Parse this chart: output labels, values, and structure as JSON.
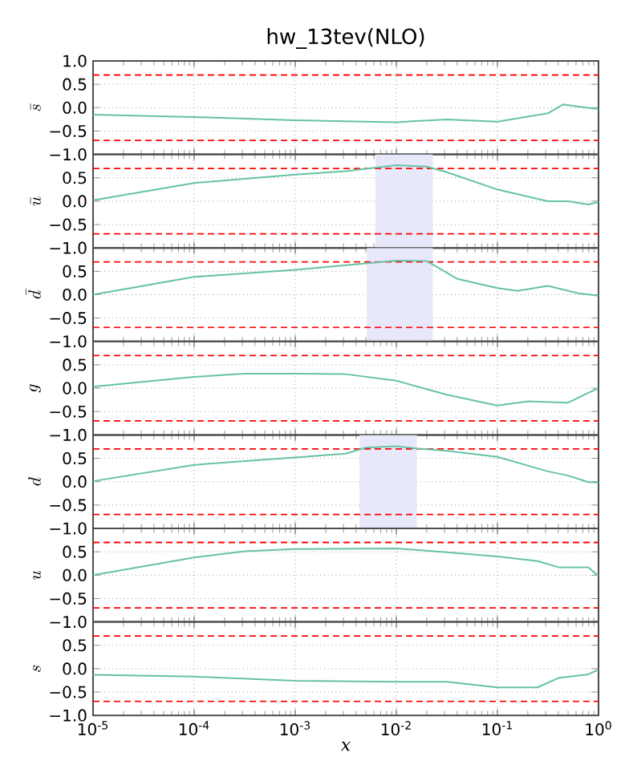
{
  "chart_data": [
    {
      "type": "line",
      "title": "hw_13tev(NLO)",
      "ylabel": "\\bar{s}",
      "log": "x",
      "grid": true,
      "tick_labels": "y",
      "xlim": [
        1e-05,
        1
      ],
      "ylim": [
        -1,
        1
      ],
      "xticks": [
        {
          "value": 1e-05,
          "label": null
        },
        {
          "value": 0.0001,
          "label": null
        },
        {
          "value": 0.001,
          "label": null
        },
        {
          "value": 0.01,
          "label": null
        },
        {
          "value": 0.1,
          "label": null
        },
        {
          "value": 1,
          "label": null
        }
      ],
      "yticks": [
        {
          "value": -1,
          "label": "−1.0"
        },
        {
          "value": -0.5,
          "label": "−0.5"
        },
        {
          "value": 0,
          "label": "0.0"
        },
        {
          "value": 0.5,
          "label": "0.5"
        },
        {
          "value": 1,
          "label": "1.0"
        }
      ],
      "ref_lines": [
        {
          "axis": "y",
          "value": 0.7,
          "color": "#ff0000",
          "line_style": "dashed"
        },
        {
          "axis": "y",
          "value": -0.7,
          "color": "#ff0000",
          "line_style": "dashed"
        }
      ],
      "series": [
        {
          "color": "#66c2a5",
          "x": [
            1e-05,
            0.0001,
            0.001,
            0.01,
            0.0316,
            0.1,
            0.316,
            0.447,
            0.708,
            1
          ],
          "values": [
            -0.15,
            -0.2,
            -0.27,
            -0.31,
            -0.25,
            -0.3,
            -0.12,
            0.07,
            0.01,
            -0.03
          ]
        }
      ]
    },
    {
      "type": "line",
      "ylabel": "\\bar{u}",
      "log": "x",
      "grid": true,
      "tick_labels": "y",
      "xlim": [
        1e-05,
        1
      ],
      "ylim": [
        -1,
        1
      ],
      "xticks": [
        {
          "value": 1e-05,
          "label": null
        },
        {
          "value": 0.0001,
          "label": null
        },
        {
          "value": 0.001,
          "label": null
        },
        {
          "value": 0.01,
          "label": null
        },
        {
          "value": 0.1,
          "label": null
        },
        {
          "value": 1,
          "label": null
        }
      ],
      "yticks": [
        {
          "value": -1,
          "label": "−1.0"
        },
        {
          "value": -0.5,
          "label": "−0.5"
        },
        {
          "value": 0,
          "label": "0.0"
        },
        {
          "value": 0.5,
          "label": "0.5"
        }
      ],
      "ref_lines": [
        {
          "axis": "y",
          "value": 0.7,
          "color": "#ff0000",
          "line_style": "dashed"
        },
        {
          "axis": "y",
          "value": -0.7,
          "color": "#ff0000",
          "line_style": "dashed"
        }
      ],
      "bands": [
        {
          "axis": "x",
          "from": 0.0062,
          "to": 0.023,
          "color": "#e8e8fb"
        }
      ],
      "series": [
        {
          "color": "#66c2a5",
          "x": [
            1e-05,
            0.0001,
            0.001,
            0.00316,
            0.01,
            0.02,
            0.0316,
            0.1,
            0.316,
            0.5,
            0.794,
            1
          ],
          "values": [
            0.02,
            0.39,
            0.57,
            0.64,
            0.77,
            0.74,
            0.62,
            0.25,
            0,
            0,
            -0.07,
            -0.02
          ]
        }
      ]
    },
    {
      "type": "line",
      "ylabel": "\\bar{d}",
      "log": "x",
      "grid": true,
      "tick_labels": "y",
      "xlim": [
        1e-05,
        1
      ],
      "ylim": [
        -1,
        1
      ],
      "xticks": [
        {
          "value": 1e-05,
          "label": null
        },
        {
          "value": 0.0001,
          "label": null
        },
        {
          "value": 0.001,
          "label": null
        },
        {
          "value": 0.01,
          "label": null
        },
        {
          "value": 0.1,
          "label": null
        },
        {
          "value": 1,
          "label": null
        }
      ],
      "yticks": [
        {
          "value": -1,
          "label": "−1.0"
        },
        {
          "value": -0.5,
          "label": "−0.5"
        },
        {
          "value": 0,
          "label": "0.0"
        },
        {
          "value": 0.5,
          "label": "0.5"
        }
      ],
      "ref_lines": [
        {
          "axis": "y",
          "value": 0.7,
          "color": "#ff0000",
          "line_style": "dashed"
        },
        {
          "axis": "y",
          "value": -0.7,
          "color": "#ff0000",
          "line_style": "dashed"
        }
      ],
      "bands": [
        {
          "axis": "x",
          "from": 0.0051,
          "to": 0.023,
          "color": "#e8e8fb"
        }
      ],
      "series": [
        {
          "color": "#66c2a5",
          "x": [
            1e-05,
            0.0001,
            0.001,
            0.01,
            0.02,
            0.04,
            0.1,
            0.158,
            0.316,
            0.631,
            1
          ],
          "values": [
            0,
            0.38,
            0.53,
            0.73,
            0.72,
            0.34,
            0.14,
            0.08,
            0.19,
            0.03,
            -0.02
          ]
        }
      ]
    },
    {
      "type": "line",
      "ylabel": "g",
      "log": "x",
      "grid": true,
      "tick_labels": "y",
      "xlim": [
        1e-05,
        1
      ],
      "ylim": [
        -1,
        1
      ],
      "xticks": [
        {
          "value": 1e-05,
          "label": null
        },
        {
          "value": 0.0001,
          "label": null
        },
        {
          "value": 0.001,
          "label": null
        },
        {
          "value": 0.01,
          "label": null
        },
        {
          "value": 0.1,
          "label": null
        },
        {
          "value": 1,
          "label": null
        }
      ],
      "yticks": [
        {
          "value": -1,
          "label": "−1.0"
        },
        {
          "value": -0.5,
          "label": "−0.5"
        },
        {
          "value": 0,
          "label": "0.0"
        },
        {
          "value": 0.5,
          "label": "0.5"
        }
      ],
      "ref_lines": [
        {
          "axis": "y",
          "value": 0.7,
          "color": "#ff0000",
          "line_style": "dashed"
        },
        {
          "axis": "y",
          "value": -0.7,
          "color": "#ff0000",
          "line_style": "dashed"
        }
      ],
      "series": [
        {
          "color": "#66c2a5",
          "x": [
            1e-05,
            0.0001,
            0.000316,
            0.001,
            0.00316,
            0.01,
            0.0316,
            0.1,
            0.2,
            0.5,
            0.794,
            1
          ],
          "values": [
            0.03,
            0.24,
            0.31,
            0.31,
            0.3,
            0.16,
            -0.14,
            -0.37,
            -0.28,
            -0.31,
            -0.1,
            0
          ]
        }
      ]
    },
    {
      "type": "line",
      "ylabel": "d",
      "log": "x",
      "grid": true,
      "tick_labels": "y",
      "xlim": [
        1e-05,
        1
      ],
      "ylim": [
        -1,
        1
      ],
      "xticks": [
        {
          "value": 1e-05,
          "label": null
        },
        {
          "value": 0.0001,
          "label": null
        },
        {
          "value": 0.001,
          "label": null
        },
        {
          "value": 0.01,
          "label": null
        },
        {
          "value": 0.1,
          "label": null
        },
        {
          "value": 1,
          "label": null
        }
      ],
      "yticks": [
        {
          "value": -1,
          "label": "−1.0"
        },
        {
          "value": -0.5,
          "label": "−0.5"
        },
        {
          "value": 0,
          "label": "0.0"
        },
        {
          "value": 0.5,
          "label": "0.5"
        }
      ],
      "ref_lines": [
        {
          "axis": "y",
          "value": 0.7,
          "color": "#ff0000",
          "line_style": "dashed"
        },
        {
          "axis": "y",
          "value": -0.7,
          "color": "#ff0000",
          "line_style": "dashed"
        }
      ],
      "bands": [
        {
          "axis": "x",
          "from": 0.0043,
          "to": 0.016,
          "color": "#e8e8fb"
        }
      ],
      "series": [
        {
          "color": "#66c2a5",
          "x": [
            1e-05,
            0.0001,
            0.001,
            0.00316,
            0.005,
            0.01,
            0.0158,
            0.0316,
            0.1,
            0.316,
            0.5,
            0.794,
            1
          ],
          "values": [
            0.01,
            0.36,
            0.52,
            0.6,
            0.73,
            0.76,
            0.71,
            0.66,
            0.53,
            0.22,
            0.13,
            -0.01,
            -0.02
          ]
        }
      ]
    },
    {
      "type": "line",
      "ylabel": "u",
      "log": "x",
      "grid": true,
      "tick_labels": "y",
      "xlim": [
        1e-05,
        1
      ],
      "ylim": [
        -1,
        1
      ],
      "xticks": [
        {
          "value": 1e-05,
          "label": null
        },
        {
          "value": 0.0001,
          "label": null
        },
        {
          "value": 0.001,
          "label": null
        },
        {
          "value": 0.01,
          "label": null
        },
        {
          "value": 0.1,
          "label": null
        },
        {
          "value": 1,
          "label": null
        }
      ],
      "yticks": [
        {
          "value": -1,
          "label": "−1.0"
        },
        {
          "value": -0.5,
          "label": "−0.5"
        },
        {
          "value": 0,
          "label": "0.0"
        },
        {
          "value": 0.5,
          "label": "0.5"
        }
      ],
      "ref_lines": [
        {
          "axis": "y",
          "value": 0.7,
          "color": "#ff0000",
          "line_style": "dashed"
        },
        {
          "axis": "y",
          "value": -0.7,
          "color": "#ff0000",
          "line_style": "dashed"
        }
      ],
      "series": [
        {
          "color": "#66c2a5",
          "x": [
            1e-05,
            0.0001,
            0.000316,
            0.001,
            0.01,
            0.0316,
            0.1,
            0.25,
            0.4,
            0.794,
            1
          ],
          "values": [
            0,
            0.38,
            0.51,
            0.56,
            0.57,
            0.49,
            0.4,
            0.3,
            0.17,
            0.17,
            -0.02
          ]
        }
      ]
    },
    {
      "type": "line",
      "ylabel": "s",
      "xlabel": "x",
      "log": "x",
      "grid": true,
      "xlim": [
        1e-05,
        1
      ],
      "ylim": [
        -1,
        1
      ],
      "xticks": [
        {
          "value": 1e-05,
          "label": "10$^{-5}$"
        },
        {
          "value": 0.0001,
          "label": "10$^{-4}$"
        },
        {
          "value": 0.001,
          "label": "10$^{-3}$"
        },
        {
          "value": 0.01,
          "label": "10$^{-2}$"
        },
        {
          "value": 0.1,
          "label": "10$^{-1}$"
        },
        {
          "value": 1,
          "label": "10$^{0}$"
        }
      ],
      "yticks": [
        {
          "value": -1,
          "label": "−1.0"
        },
        {
          "value": -0.5,
          "label": "−0.5"
        },
        {
          "value": 0,
          "label": "0.0"
        },
        {
          "value": 0.5,
          "label": "0.5"
        }
      ],
      "ref_lines": [
        {
          "axis": "y",
          "value": 0.7,
          "color": "#ff0000",
          "line_style": "dashed"
        },
        {
          "axis": "y",
          "value": -0.7,
          "color": "#ff0000",
          "line_style": "dashed"
        }
      ],
      "series": [
        {
          "color": "#66c2a5",
          "x": [
            1e-05,
            0.0001,
            0.001,
            0.01,
            0.0316,
            0.1,
            0.25,
            0.4,
            0.794,
            1
          ],
          "values": [
            -0.13,
            -0.17,
            -0.26,
            -0.28,
            -0.28,
            -0.4,
            -0.4,
            -0.2,
            -0.12,
            -0.02
          ]
        }
      ]
    }
  ]
}
